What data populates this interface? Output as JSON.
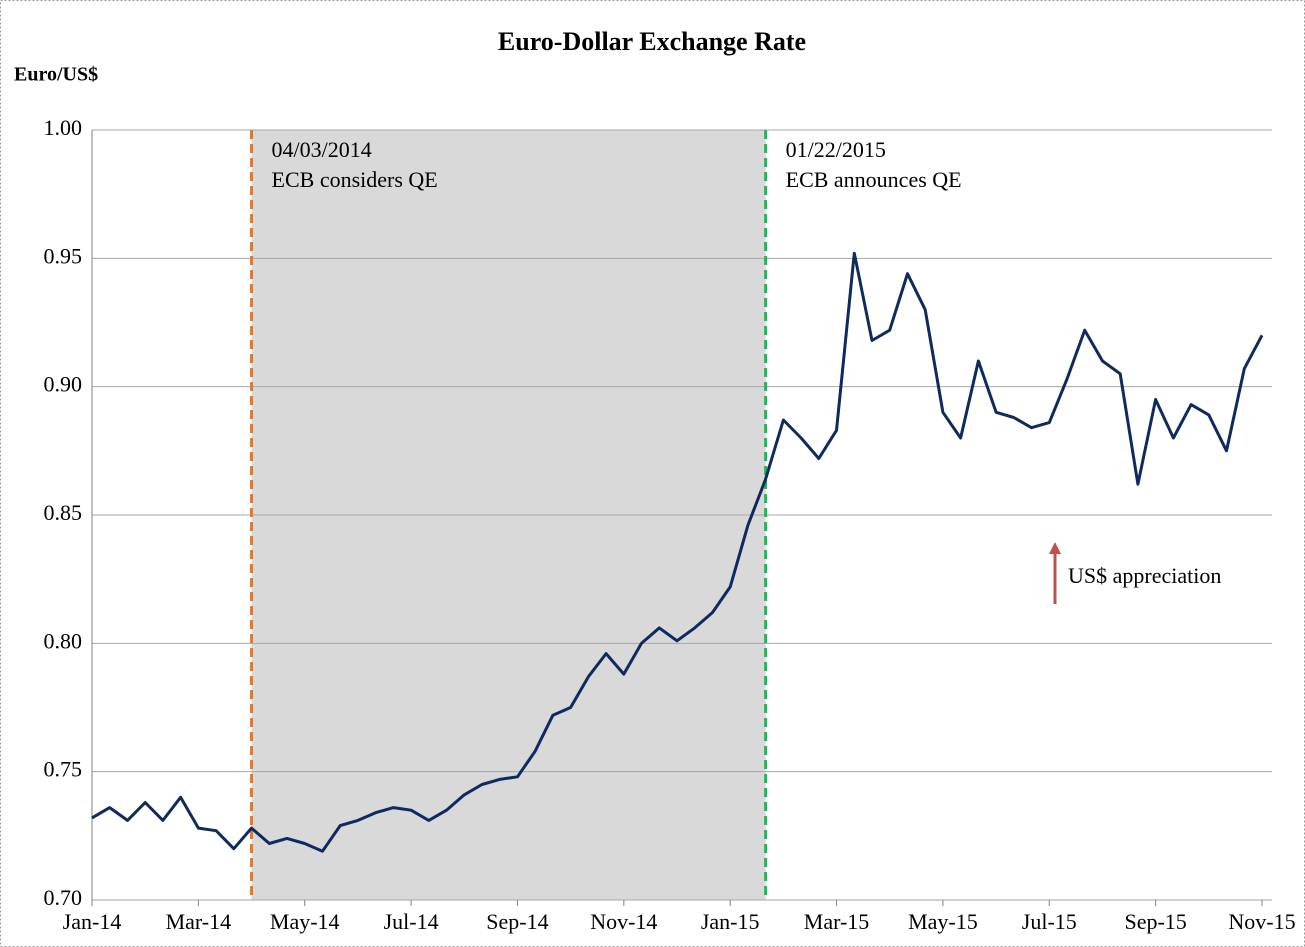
{
  "chart_data": {
    "type": "line",
    "title": "Euro-Dollar Exchange Rate",
    "y_label": "Euro/US$",
    "categories": [
      "Jan-14",
      null,
      null,
      null,
      null,
      null,
      "Mar-14",
      null,
      null,
      null,
      null,
      null,
      "May-14",
      null,
      null,
      null,
      null,
      null,
      "Jul-14",
      null,
      null,
      null,
      null,
      null,
      "Sep-14",
      null,
      null,
      null,
      null,
      null,
      "Nov-14",
      null,
      null,
      null,
      null,
      null,
      "Jan-15",
      null,
      null,
      null,
      null,
      null,
      "Mar-15",
      null,
      null,
      null,
      null,
      null,
      "May-15",
      null,
      null,
      null,
      null,
      null,
      "Jul-15",
      null,
      null,
      null,
      null,
      null,
      "Sep-15",
      null,
      null,
      null,
      null,
      null,
      "Nov-15"
    ],
    "series": [
      {
        "name": "Euro/US$",
        "color": "#0f2a5e",
        "values": [
          0.732,
          0.736,
          0.731,
          0.738,
          0.731,
          0.74,
          0.728,
          0.727,
          0.72,
          0.728,
          0.722,
          0.724,
          0.722,
          0.719,
          0.729,
          0.731,
          0.734,
          0.736,
          0.735,
          0.731,
          0.735,
          0.741,
          0.745,
          0.747,
          0.748,
          0.758,
          0.772,
          0.775,
          0.787,
          0.796,
          0.788,
          0.8,
          0.806,
          0.801,
          0.806,
          0.812,
          0.822,
          0.846,
          0.864,
          0.887,
          0.88,
          0.872,
          0.883,
          0.952,
          0.918,
          0.922,
          0.944,
          0.93,
          0.89,
          0.88,
          0.91,
          0.89,
          0.888,
          0.884,
          0.886,
          0.903,
          0.922,
          0.91,
          0.905,
          0.862,
          0.895,
          0.88,
          0.893,
          0.889,
          0.875,
          0.907,
          0.92
        ]
      }
    ],
    "ylim": [
      0.7,
      1.0
    ],
    "yticks": [
      {
        "value": 0.7,
        "label": "0.70"
      },
      {
        "value": 0.75,
        "label": "0.75"
      },
      {
        "value": 0.8,
        "label": "0.80"
      },
      {
        "value": 0.85,
        "label": "0.85"
      },
      {
        "value": 0.9,
        "label": "0.90"
      },
      {
        "value": 0.95,
        "label": "0.95"
      },
      {
        "value": 1.0,
        "label": "1.00"
      }
    ],
    "grid": true,
    "annotations": [
      {
        "x": 9,
        "date": "04/03/2014",
        "text": "ECB considers QE",
        "color": "#e87722"
      },
      {
        "x": 38,
        "date": "01/22/2015",
        "text": "ECB announces QE",
        "color": "#1db954"
      }
    ],
    "note": {
      "text": "US$ appreciation",
      "color": "#c0504d"
    }
  }
}
